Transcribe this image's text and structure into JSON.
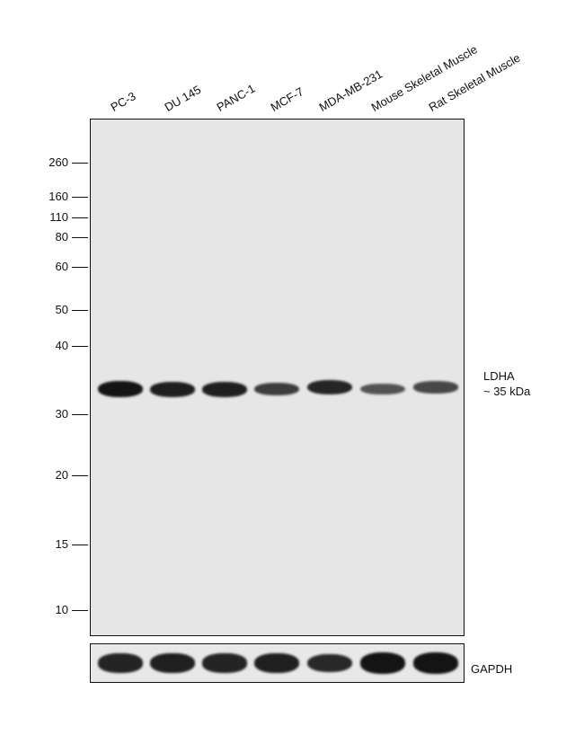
{
  "lanes": [
    "PC-3",
    "DU 145",
    "PANC-1",
    "MCF-7",
    "MDA-MB-231",
    "Mouse Skeletal Muscle",
    "Rat Skeletal Muscle"
  ],
  "markers": [
    "260",
    "160",
    "110",
    "80",
    "60",
    "50",
    "40",
    "30",
    "20",
    "15",
    "10"
  ],
  "target": {
    "name": "LDHA",
    "size": "~ 35 kDa"
  },
  "control": {
    "name": "GAPDH"
  },
  "band_intensity": {
    "target": [
      1.0,
      0.9,
      0.9,
      0.65,
      0.85,
      0.45,
      0.55
    ],
    "control": [
      0.8,
      0.85,
      0.8,
      0.85,
      0.75,
      1.0,
      1.0
    ]
  }
}
